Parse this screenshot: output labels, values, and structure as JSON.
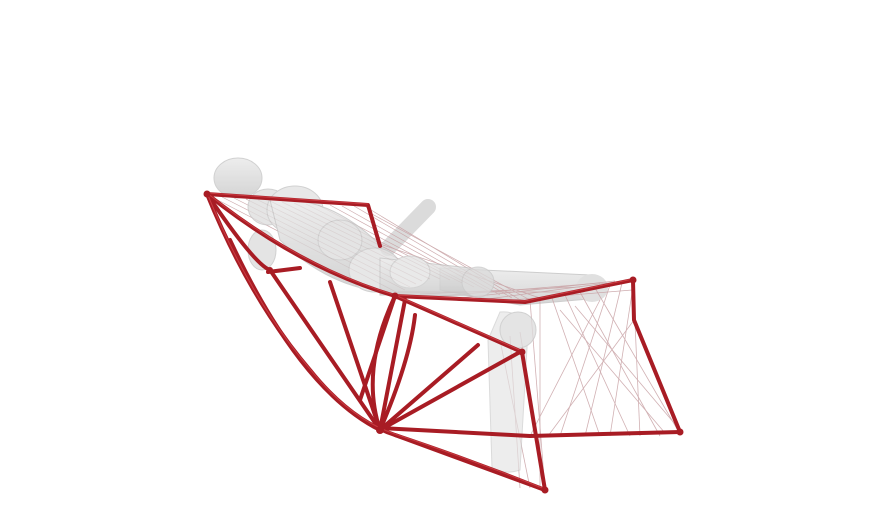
{
  "scene": {
    "background_color": "#ffffff",
    "frame_color": "#a81c24",
    "frame_highlight_color": "#d8484e",
    "string_color": "#c9a3a6",
    "figure_color": "#d9d9d9",
    "figure_stroke_color": "#bdbdbd",
    "subject": "chair-frame-with-reclining-figure",
    "render_style": "semi-transparent 3D model render"
  }
}
